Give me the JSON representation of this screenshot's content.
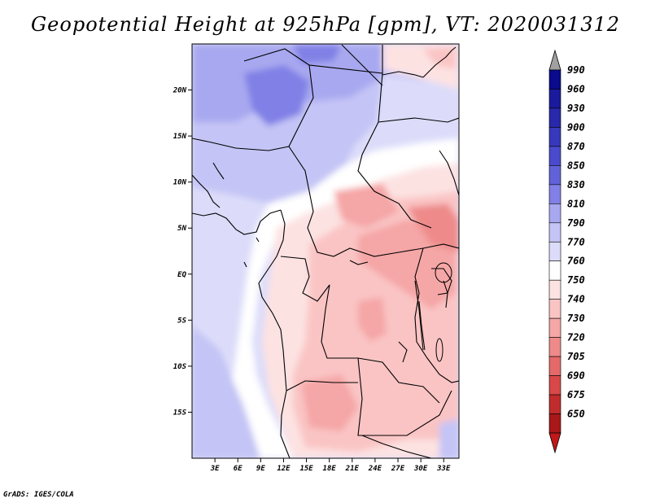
{
  "title": "Geopotential Height at 925hPa [gpm], VT: 2020031312",
  "footer": "GrADS: IGES/COLA",
  "map": {
    "lat_labels": [
      {
        "value": 20,
        "label": "20N"
      },
      {
        "value": 15,
        "label": "15N"
      },
      {
        "value": 10,
        "label": "10N"
      },
      {
        "value": 5,
        "label": "5N"
      },
      {
        "value": 0,
        "label": "EQ"
      },
      {
        "value": -5,
        "label": "5S"
      },
      {
        "value": -10,
        "label": "10S"
      },
      {
        "value": -15,
        "label": "15S"
      }
    ],
    "lon_labels": [
      {
        "value": 3,
        "label": "3E"
      },
      {
        "value": 6,
        "label": "6E"
      },
      {
        "value": 9,
        "label": "9E"
      },
      {
        "value": 12,
        "label": "12E"
      },
      {
        "value": 15,
        "label": "15E"
      },
      {
        "value": 18,
        "label": "18E"
      },
      {
        "value": 21,
        "label": "21E"
      },
      {
        "value": 24,
        "label": "24E"
      },
      {
        "value": 27,
        "label": "27E"
      },
      {
        "value": 30,
        "label": "30E"
      },
      {
        "value": 33,
        "label": "33E"
      }
    ],
    "lat_range": [
      -20,
      25
    ],
    "lon_range": [
      0,
      35
    ]
  },
  "colorbar": {
    "levels": [
      {
        "label": "990",
        "color": "#0a0a8c"
      },
      {
        "label": "960",
        "color": "#1a1a9c"
      },
      {
        "label": "930",
        "color": "#2828aa"
      },
      {
        "label": "900",
        "color": "#3838bc"
      },
      {
        "label": "870",
        "color": "#4a4acc"
      },
      {
        "label": "850",
        "color": "#6262d8"
      },
      {
        "label": "830",
        "color": "#8080e6"
      },
      {
        "label": "810",
        "color": "#a8a8f0"
      },
      {
        "label": "790",
        "color": "#c4c4f6"
      },
      {
        "label": "770",
        "color": "#dcdcfa"
      },
      {
        "label": "760",
        "color": "#ffffff"
      },
      {
        "label": "750",
        "color": "#fde2e2"
      },
      {
        "label": "740",
        "color": "#fac4c4"
      },
      {
        "label": "730",
        "color": "#f5a6a6"
      },
      {
        "label": "720",
        "color": "#ee8a8a"
      },
      {
        "label": "705",
        "color": "#e46a6a"
      },
      {
        "label": "690",
        "color": "#d84848"
      },
      {
        "label": "675",
        "color": "#c02c2c"
      },
      {
        "label": "650",
        "color": "#a81818"
      }
    ],
    "top_arrow_color": "#a0a0a0",
    "bottom_arrow_color": "#c01818"
  }
}
